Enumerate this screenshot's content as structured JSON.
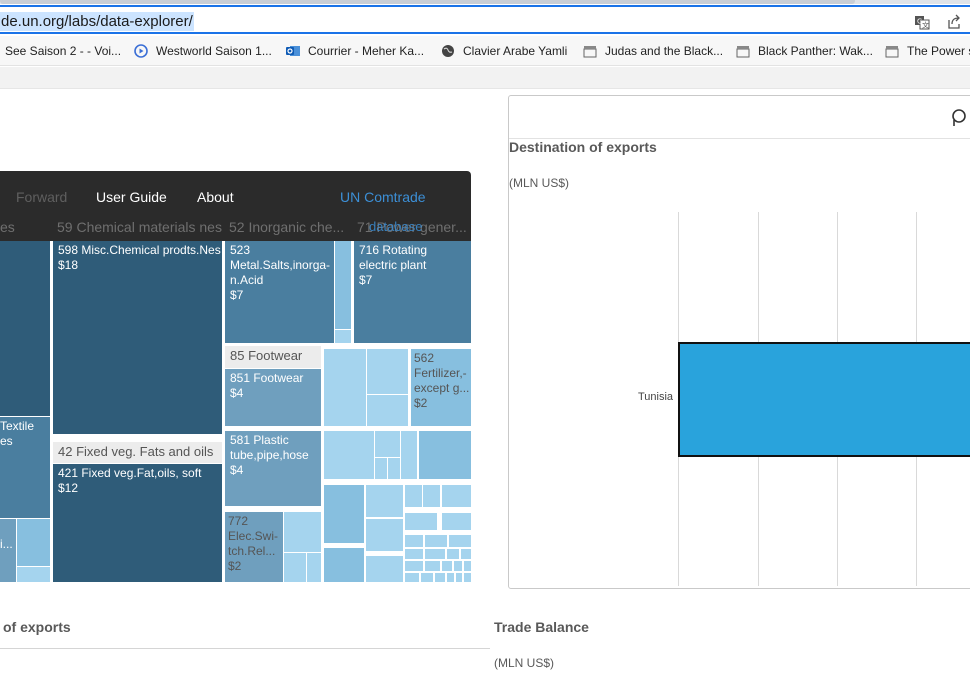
{
  "browser": {
    "url": "de.un.org/labs/data-explorer/",
    "bookmarks": [
      {
        "label": "See Saison 2 - - Voi...",
        "icon": "none"
      },
      {
        "label": "Westworld Saison 1...",
        "icon": "play-circle-icon"
      },
      {
        "label": "Courrier - Meher Ka...",
        "icon": "outlook-icon"
      },
      {
        "label": "Clavier Arabe Yamli",
        "icon": "globe-icon"
      },
      {
        "label": "Judas and the Black...",
        "icon": "clapperboard-icon"
      },
      {
        "label": "Black Panther: Wak...",
        "icon": "clapperboard-icon"
      },
      {
        "label": "The Power s",
        "icon": "clapperboard-icon"
      }
    ]
  },
  "app_nav": {
    "forward": "Forward",
    "user_guide": "User Guide",
    "about": "About",
    "brand": "UN Comtrade",
    "database": "database"
  },
  "treemap": {
    "headers": {
      "first": "es",
      "chem": "59 Chemical materials nes",
      "inorg": "52 Inorganic che...",
      "gen": "71 Power gener..."
    },
    "groups": {
      "footwear": "85 Footwear",
      "veg": "42 Fixed veg. Fats and oils"
    },
    "cells": {
      "misc_chem": {
        "name": "598 Misc.Chemical prodts.Nes",
        "value": "$18"
      },
      "metal_salts": {
        "name": "523 Metal.Salts,inorga-n.Acid",
        "value": "$7"
      },
      "rotating": {
        "name": "716 Rotating electric plant",
        "value": "$7"
      },
      "footwear": {
        "name": "851 Footwear",
        "value": "$4"
      },
      "fertilizer": {
        "name": "562 Fertilizer,-except g...",
        "value": "$2"
      },
      "plastic": {
        "name": "581 Plastic tube,pipe,hose",
        "value": "$4"
      },
      "veg_oils": {
        "name": "421 Fixed veg.Fat,oils, soft",
        "value": "$12"
      },
      "elec_switch": {
        "name": "772 Elec.Swi-tch.Rel...",
        "value": "$2"
      },
      "textile": {
        "name": "Textile",
        "value": "es"
      },
      "small_i": {
        "name": "i..."
      }
    }
  },
  "panel": {
    "title": "Destination of exports",
    "unit": "(MLN US$)",
    "category": "Tunisia"
  },
  "bottom": {
    "left_title": "of exports",
    "right_title": "Trade Balance",
    "right_unit": "(MLN US$)"
  },
  "colors": {
    "bar": "#29a3dc",
    "dark_header": "#2b2b2b",
    "brand_link": "#3c8fd6"
  }
}
